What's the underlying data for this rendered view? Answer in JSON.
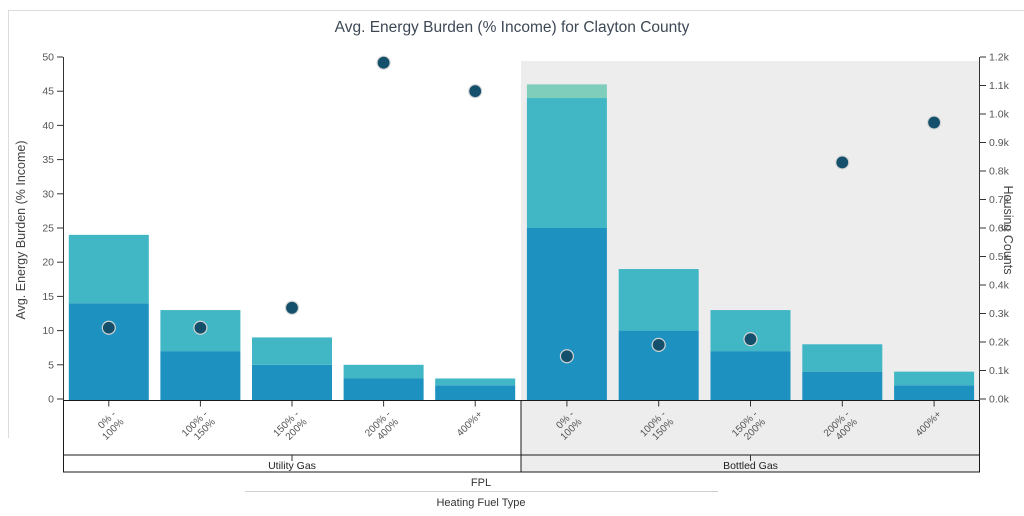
{
  "chart_data": {
    "type": "bar",
    "subtype": "stacked-bars-with-scatter-overlay",
    "title": "Avg. Energy Burden (% Income) for Clayton County",
    "ylabel": "Avg. Energy Burden (% Income)",
    "y2label": "Housing Counts",
    "xlabel": "Heating Fuel Type",
    "x_parent_label": "FPL",
    "ylim": [
      0,
      50
    ],
    "y_ticks": [
      0,
      5,
      10,
      15,
      20,
      25,
      30,
      35,
      40,
      45,
      50
    ],
    "y2lim_k": [
      0.0,
      1.2
    ],
    "y2_ticks": [
      "0.0k",
      "0.1k",
      "0.2k",
      "0.3k",
      "0.4k",
      "0.5k",
      "0.6k",
      "0.7k",
      "0.8k",
      "0.9k",
      "1.0k",
      "1.1k",
      "1.2k"
    ],
    "grid": "off",
    "legend": "none",
    "categories": [
      [
        "0% -",
        "100%"
      ],
      [
        "100% -",
        "150%"
      ],
      [
        "150% -",
        "200%"
      ],
      [
        "200% -",
        "400%"
      ],
      [
        "400%+"
      ]
    ],
    "segment_colors": [
      "#1d91c0",
      "#41b6c4",
      "#7fcdbb"
    ],
    "groups": [
      {
        "label": "Utility Gas",
        "shaded": false,
        "stacks": [
          [
            14,
            10
          ],
          [
            7,
            6
          ],
          [
            5,
            4
          ],
          [
            3,
            2
          ],
          [
            2,
            1
          ]
        ],
        "bar_totals": [
          24,
          13,
          9,
          5,
          3
        ],
        "housing_counts_k": [
          0.25,
          0.25,
          0.32,
          1.18,
          1.08
        ]
      },
      {
        "label": "Bottled Gas",
        "shaded": true,
        "stacks": [
          [
            25,
            19,
            2
          ],
          [
            10,
            9
          ],
          [
            7,
            6
          ],
          [
            4,
            4
          ],
          [
            2,
            2
          ]
        ],
        "bar_totals": [
          46,
          19,
          13,
          8,
          4
        ],
        "housing_counts_k": [
          0.15,
          0.19,
          0.21,
          0.83,
          0.97
        ]
      }
    ],
    "colors": {
      "dot": "#14506b",
      "dot_stroke": "#d4d4d4",
      "shaded_bg": "#ededed",
      "band_line": "#1a1a1a",
      "axis_line": "#333333",
      "tick_text": "#555555",
      "group_label_text": "#222222"
    }
  }
}
